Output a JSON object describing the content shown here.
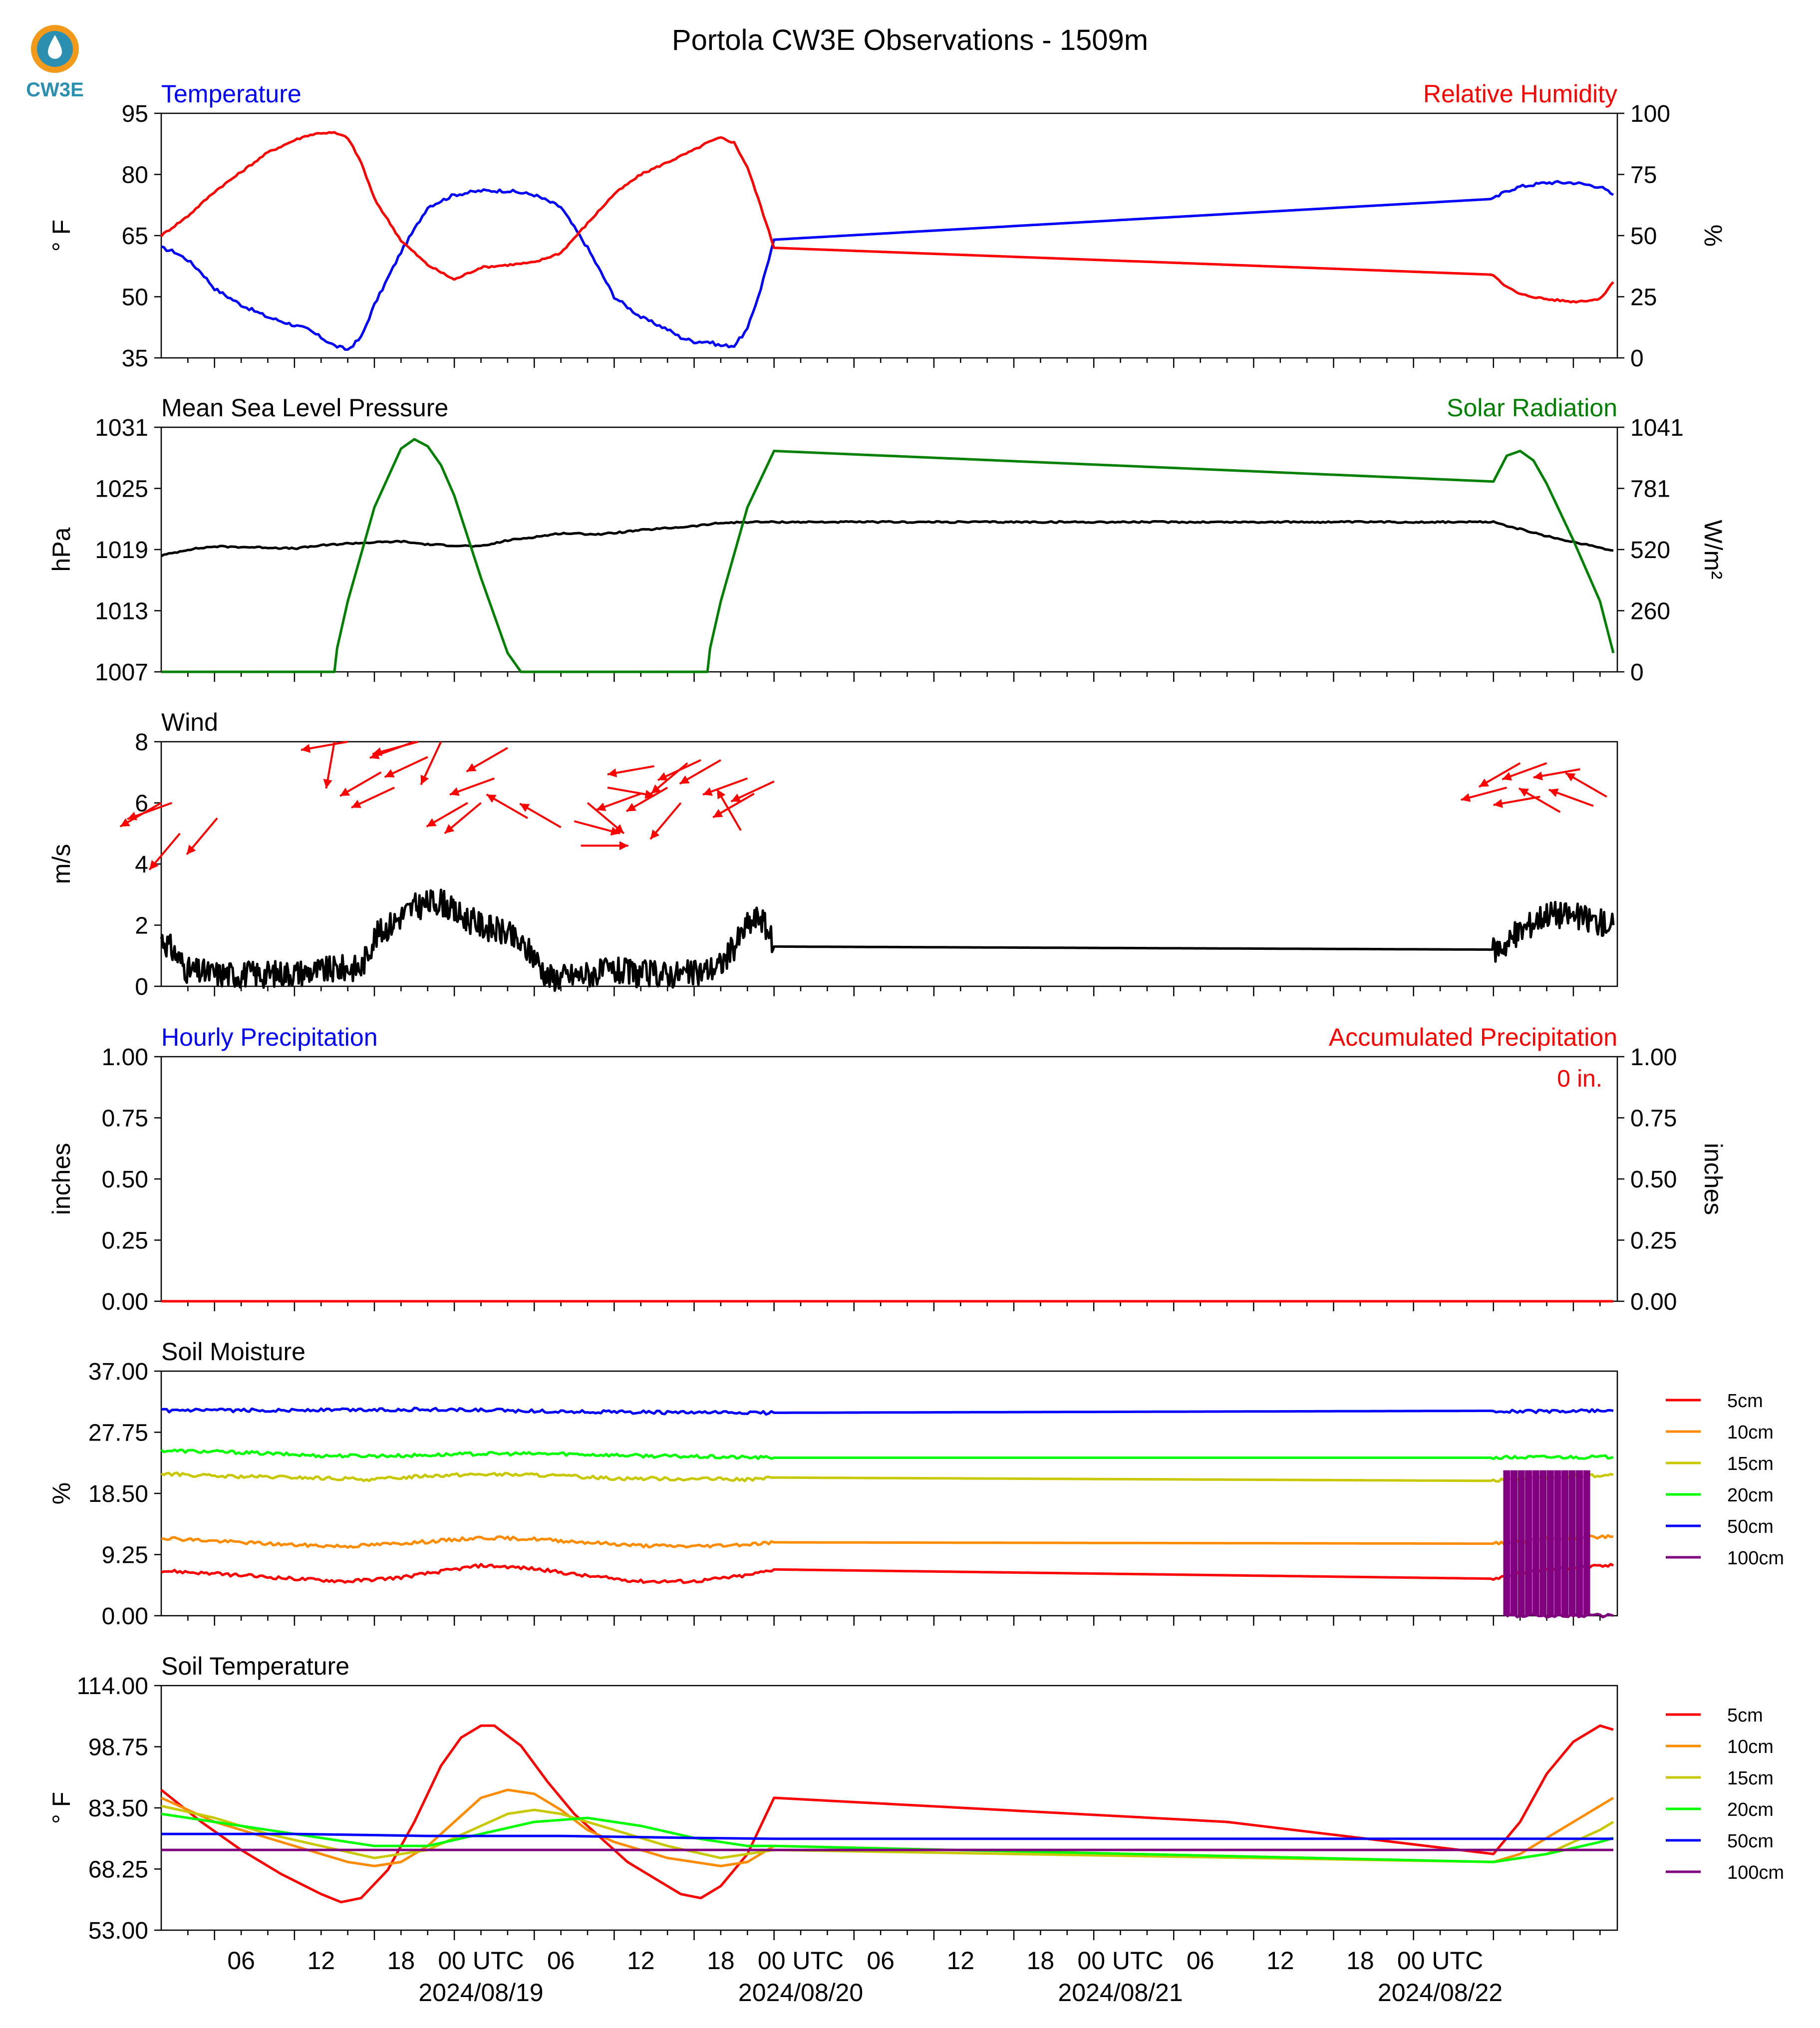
{
  "title": "Portola CW3E Observations - 1509m",
  "logo": {
    "text": "CW3E",
    "color": "#2a8fb0",
    "ring_color": "#f39a1b"
  },
  "colors": {
    "blue": "#0000ff",
    "red": "#ff0000",
    "green": "#008000",
    "black": "#000000",
    "orange": "#ff8c00",
    "olive": "#c8c800",
    "lime": "#00ff00",
    "purple": "#800080"
  },
  "x_axis": {
    "hour_ticks": [
      "06",
      "12",
      "18",
      "00 UTC",
      "06",
      "12",
      "18",
      "00 UTC",
      "06",
      "12",
      "18",
      "00 UTC",
      "06",
      "12",
      "18",
      "00 UTC"
    ],
    "date_labels": [
      "2024/08/19",
      "2024/08/20",
      "2024/08/21",
      "2024/08/22"
    ]
  },
  "chart_data": [
    {
      "type": "line",
      "left_title": "Temperature",
      "right_title": "Relative Humidity",
      "ylabel": "° F",
      "y2label": "%",
      "ylim": [
        35,
        95
      ],
      "yticks": [
        "35",
        "50",
        "65",
        "80",
        "95"
      ],
      "y2lim": [
        0,
        100
      ],
      "y2ticks": [
        "0",
        "25",
        "50",
        "75",
        "100"
      ],
      "series": [
        {
          "axis": "left",
          "color": "blue",
          "x_hours": [
            0,
            1,
            2,
            3,
            4,
            6,
            8,
            10,
            11,
            12,
            13,
            14,
            15,
            16,
            18,
            20,
            22,
            24,
            26,
            28,
            30,
            32,
            34,
            36,
            38,
            39,
            40,
            41,
            42,
            43,
            44,
            45,
            46,
            100,
            101,
            102,
            104,
            106,
            108,
            109
          ],
          "values": [
            62,
            61,
            59,
            56,
            52,
            48,
            45,
            43,
            42,
            40,
            38,
            37,
            40,
            48,
            61,
            72,
            75,
            76,
            76,
            75,
            72,
            62,
            50,
            45,
            42,
            40,
            39,
            39,
            38,
            38,
            42,
            52,
            64,
            74,
            76,
            77,
            78,
            78,
            77,
            75
          ]
        },
        {
          "axis": "right",
          "color": "red",
          "x_hours": [
            0,
            2,
            4,
            6,
            8,
            10,
            11,
            12,
            13,
            14,
            15,
            16,
            18,
            20,
            22,
            24,
            26,
            28,
            30,
            32,
            34,
            36,
            38,
            40,
            41,
            42,
            43,
            44,
            45,
            46,
            100,
            101,
            102,
            104,
            106,
            108,
            109
          ],
          "values": [
            50,
            58,
            68,
            76,
            84,
            89,
            91,
            92,
            92,
            90,
            80,
            65,
            48,
            38,
            32,
            37,
            38,
            39,
            43,
            55,
            67,
            75,
            80,
            85,
            88,
            90,
            88,
            78,
            62,
            45,
            34,
            29,
            26,
            24,
            23,
            24,
            31
          ]
        }
      ]
    },
    {
      "type": "line",
      "left_title": "Mean Sea Level Pressure",
      "right_title": "Solar Radiation",
      "ylabel": "hPa",
      "y2label": "W/m²",
      "ylim": [
        1007,
        1031
      ],
      "yticks": [
        "1007",
        "1013",
        "1019",
        "1025",
        "1031"
      ],
      "y2lim": [
        0,
        1041
      ],
      "y2ticks": [
        "0",
        "260",
        "520",
        "781",
        "1041"
      ],
      "series": [
        {
          "axis": "left",
          "color": "black",
          "x_hours": [
            0,
            2,
            4,
            8,
            10,
            12,
            14,
            18,
            20,
            24,
            26,
            29,
            30,
            33,
            36,
            40,
            42,
            44,
            46,
            60,
            80,
            100,
            102,
            104,
            108,
            109
          ],
          "values": [
            1018.4,
            1019.0,
            1019.3,
            1019.2,
            1019.1,
            1019.4,
            1019.6,
            1019.8,
            1019.5,
            1019.3,
            1019.9,
            1020.4,
            1020.6,
            1020.5,
            1020.9,
            1021.3,
            1021.6,
            1021.7,
            1021.7,
            1021.7,
            1021.7,
            1021.7,
            1021.0,
            1020.3,
            1019.2,
            1018.9
          ]
        },
        {
          "axis": "right",
          "color": "green",
          "x_hours": [
            0,
            13,
            13.2,
            14,
            16,
            18,
            19,
            20,
            21,
            22,
            24,
            26,
            27,
            27.5,
            28,
            41,
            41.2,
            42,
            44,
            46,
            100,
            101,
            102,
            103,
            104,
            106,
            108,
            109
          ],
          "values": [
            0,
            0,
            100,
            300,
            700,
            950,
            990,
            960,
            880,
            750,
            400,
            80,
            0,
            0,
            0,
            0,
            100,
            300,
            700,
            940,
            810,
            920,
            940,
            900,
            800,
            560,
            300,
            80
          ]
        }
      ]
    },
    {
      "type": "line",
      "left_title": "Wind",
      "ylabel": "m/s",
      "ylim": [
        0,
        8
      ],
      "yticks": [
        "0",
        "2",
        "4",
        "6",
        "8"
      ],
      "series": [
        {
          "axis": "left",
          "color": "black",
          "x_hours": [
            0,
            1,
            2,
            4,
            8,
            12,
            14,
            15,
            16,
            18,
            19,
            20,
            21,
            22,
            24,
            26,
            28,
            29,
            30,
            32,
            34,
            36,
            38,
            40,
            42,
            43,
            44,
            45,
            46,
            100,
            101,
            102,
            104,
            106,
            108,
            109
          ],
          "values": [
            1.6,
            1.1,
            0.5,
            0.4,
            0.4,
            0.5,
            0.6,
            0.6,
            1.6,
            2.3,
            2.6,
            2.7,
            2.8,
            2.4,
            2.0,
            1.7,
            1.0,
            0.3,
            0.3,
            0.4,
            0.5,
            0.4,
            0.4,
            0.4,
            0.7,
            1.3,
            2.0,
            2.3,
            1.3,
            1.2,
            1.4,
            1.8,
            2.4,
            2.3,
            2.1,
            2.0
          ]
        },
        {
          "type": "barbs",
          "color": "red",
          "x_hours": [
            0,
            0.8,
            1.4,
            4.2,
            13,
            14,
            16.5,
            17.5,
            19,
            19.3,
            20,
            21,
            23,
            24,
            25,
            26,
            27.5,
            30,
            31,
            31.5,
            32,
            33.5,
            36,
            37,
            38,
            39,
            39.5,
            40.5,
            42,
            43.5,
            44,
            44.5,
            46,
            101,
            102,
            103.5,
            104,
            105,
            106.5,
            107.5,
            108.5
          ],
          "speeds": [
            6,
            6,
            5,
            5.5,
            8,
            8,
            7,
            6.5,
            8,
            8,
            7.5,
            8,
            6,
            6,
            6.8,
            7.8,
            5.5,
            5.2,
            5.4,
            4.6,
            6,
            6.5,
            6.3,
            7.2,
            6.5,
            6,
            7.3,
            7.4,
            7.4,
            5.1,
            6.8,
            6.3,
            6.7,
            6.5,
            7.3,
            6.2,
            7.3,
            5.7,
            7.1,
            5.9,
            6.2
          ],
          "directions_deg": [
            240,
            250,
            220,
            220,
            190,
            260,
            240,
            245,
            250,
            255,
            245,
            205,
            240,
            230,
            250,
            240,
            300,
            300,
            105,
            90,
            130,
            100,
            250,
            260,
            240,
            220,
            230,
            245,
            240,
            330,
            250,
            240,
            245,
            255,
            240,
            260,
            250,
            300,
            260,
            290,
            300
          ]
        }
      ]
    },
    {
      "type": "line",
      "left_title": "Hourly Precipitation",
      "right_title": "Accumulated Precipitation",
      "ylabel": "inches",
      "y2label": "inches",
      "ylim": [
        0,
        1
      ],
      "yticks": [
        "0.00",
        "0.25",
        "0.50",
        "0.75",
        "1.00"
      ],
      "y2lim": [
        0,
        1
      ],
      "y2ticks": [
        "0.00",
        "0.25",
        "0.50",
        "0.75",
        "1.00"
      ],
      "annotation": "0 in.",
      "series": [
        {
          "axis": "left",
          "color": "red",
          "x_hours": [
            0,
            109
          ],
          "values": [
            0,
            0
          ]
        }
      ]
    },
    {
      "type": "line",
      "left_title": "Soil Moisture",
      "ylabel": "%",
      "ylim": [
        0,
        37
      ],
      "yticks": [
        "0.00",
        "9.25",
        "18.50",
        "27.75",
        "37.00"
      ],
      "legend": [
        "5cm",
        "10cm",
        "15cm",
        "20cm",
        "50cm",
        "100cm"
      ],
      "series": [
        {
          "name": "5cm",
          "color": "red",
          "x_hours": [
            0,
            2,
            6,
            10,
            14,
            18,
            22,
            24,
            26,
            28,
            32,
            36,
            40,
            44,
            46,
            100,
            101,
            102,
            104,
            109
          ],
          "values": [
            6.8,
            6.6,
            6.1,
            5.6,
            5.2,
            5.8,
            7.0,
            7.6,
            7.4,
            7.1,
            6.0,
            5.2,
            5.2,
            6.1,
            7.0,
            5.6,
            6.0,
            6.4,
            7.0,
            7.6
          ]
        },
        {
          "name": "10cm",
          "color": "orange",
          "x_hours": [
            0,
            4,
            10,
            14,
            20,
            24,
            28,
            32,
            36,
            40,
            44,
            46,
            100,
            104,
            109
          ],
          "values": [
            11.8,
            11.3,
            10.7,
            10.5,
            11.2,
            11.8,
            11.6,
            11.1,
            10.6,
            10.5,
            10.8,
            11.1,
            10.9,
            11.6,
            12.0
          ]
        },
        {
          "name": "15cm",
          "color": "olive",
          "x_hours": [
            0,
            4,
            10,
            16,
            20,
            24,
            28,
            34,
            40,
            44,
            46,
            100,
            104,
            109
          ],
          "values": [
            21.5,
            21.1,
            20.9,
            20.6,
            21.2,
            21.4,
            21.3,
            20.8,
            20.7,
            20.6,
            20.9,
            20.4,
            20.9,
            21.3
          ]
        },
        {
          "name": "20cm",
          "color": "lime",
          "x_hours": [
            0,
            6,
            12,
            18,
            24,
            30,
            36,
            42,
            46,
            100,
            104,
            109
          ],
          "values": [
            25.0,
            24.7,
            24.2,
            24.2,
            24.5,
            24.5,
            24.2,
            24.0,
            23.9,
            23.9,
            24.0,
            24.0
          ]
        },
        {
          "name": "50cm",
          "color": "blue",
          "x_hours": [
            0,
            10,
            20,
            24,
            30,
            40,
            46,
            100,
            104,
            109
          ],
          "values": [
            31.0,
            31.1,
            31.2,
            31.1,
            30.9,
            30.7,
            30.7,
            31.0,
            30.9,
            31.0
          ]
        },
        {
          "name": "100cm",
          "color": "purple",
          "x_hours": [
            101,
            109
          ],
          "values": [
            0,
            0
          ],
          "spikes": {
            "from_hour": 101,
            "to_hour": 107,
            "count": 12,
            "low": 0,
            "high": 22
          }
        }
      ]
    },
    {
      "type": "line",
      "left_title": "Soil Temperature",
      "ylabel": "° F",
      "ylim": [
        53,
        114
      ],
      "yticks": [
        "53.00",
        "68.25",
        "83.50",
        "98.75",
        "114.00"
      ],
      "legend": [
        "5cm",
        "10cm",
        "15cm",
        "20cm",
        "50cm",
        "100cm"
      ],
      "series": [
        {
          "name": "5cm",
          "color": "red",
          "x_hours": [
            0,
            3,
            6,
            9,
            12,
            13.5,
            15,
            17,
            19,
            21,
            22.5,
            24,
            25,
            27,
            29,
            31,
            33,
            35,
            37,
            39,
            40.5,
            42,
            44,
            46,
            80,
            100,
            102,
            104,
            106,
            108,
            109
          ],
          "values": [
            88,
            80,
            73,
            67,
            62,
            60,
            61,
            68,
            80,
            94,
            101,
            104,
            104,
            99,
            90,
            82,
            76,
            70,
            66,
            62,
            61,
            64,
            72,
            86,
            80,
            72,
            80,
            92,
            100,
            104,
            103
          ]
        },
        {
          "name": "10cm",
          "color": "orange",
          "x_hours": [
            0,
            4,
            8,
            12,
            14,
            16,
            18,
            20,
            22,
            24,
            26,
            28,
            30,
            32,
            34,
            36,
            38,
            40,
            42,
            44,
            46,
            100,
            102,
            104,
            106,
            108,
            109
          ],
          "values": [
            86,
            80,
            76,
            72,
            70,
            69,
            70,
            74,
            80,
            86,
            88,
            87,
            83,
            78,
            75,
            73,
            71,
            70,
            69,
            70,
            74,
            70,
            72,
            76,
            80,
            84,
            86
          ]
        },
        {
          "name": "15cm",
          "color": "olive",
          "x_hours": [
            0,
            4,
            8,
            12,
            16,
            20,
            24,
            26,
            28,
            30,
            34,
            38,
            42,
            46,
            100,
            104,
            108,
            109
          ],
          "values": [
            84,
            81,
            77,
            74,
            71,
            73,
            79,
            82,
            83,
            82,
            78,
            74,
            71,
            73,
            70,
            72,
            78,
            80
          ]
        },
        {
          "name": "20cm",
          "color": "lime",
          "x_hours": [
            0,
            4,
            8,
            12,
            16,
            20,
            24,
            28,
            32,
            36,
            40,
            44,
            46,
            100,
            104,
            108,
            109
          ],
          "values": [
            82,
            80,
            78,
            76,
            74,
            74,
            77,
            80,
            81,
            79,
            76,
            74,
            74,
            70,
            72,
            75,
            76
          ]
        },
        {
          "name": "50cm",
          "color": "blue",
          "x_hours": [
            0,
            10,
            20,
            30,
            40,
            46,
            100,
            109
          ],
          "values": [
            77,
            77,
            76.5,
            76.5,
            76,
            75.8,
            75.8,
            75.8
          ]
        },
        {
          "name": "100cm",
          "color": "purple",
          "x_hours": [
            0,
            46,
            100,
            109
          ],
          "values": [
            73,
            73,
            73,
            73
          ]
        }
      ]
    }
  ]
}
